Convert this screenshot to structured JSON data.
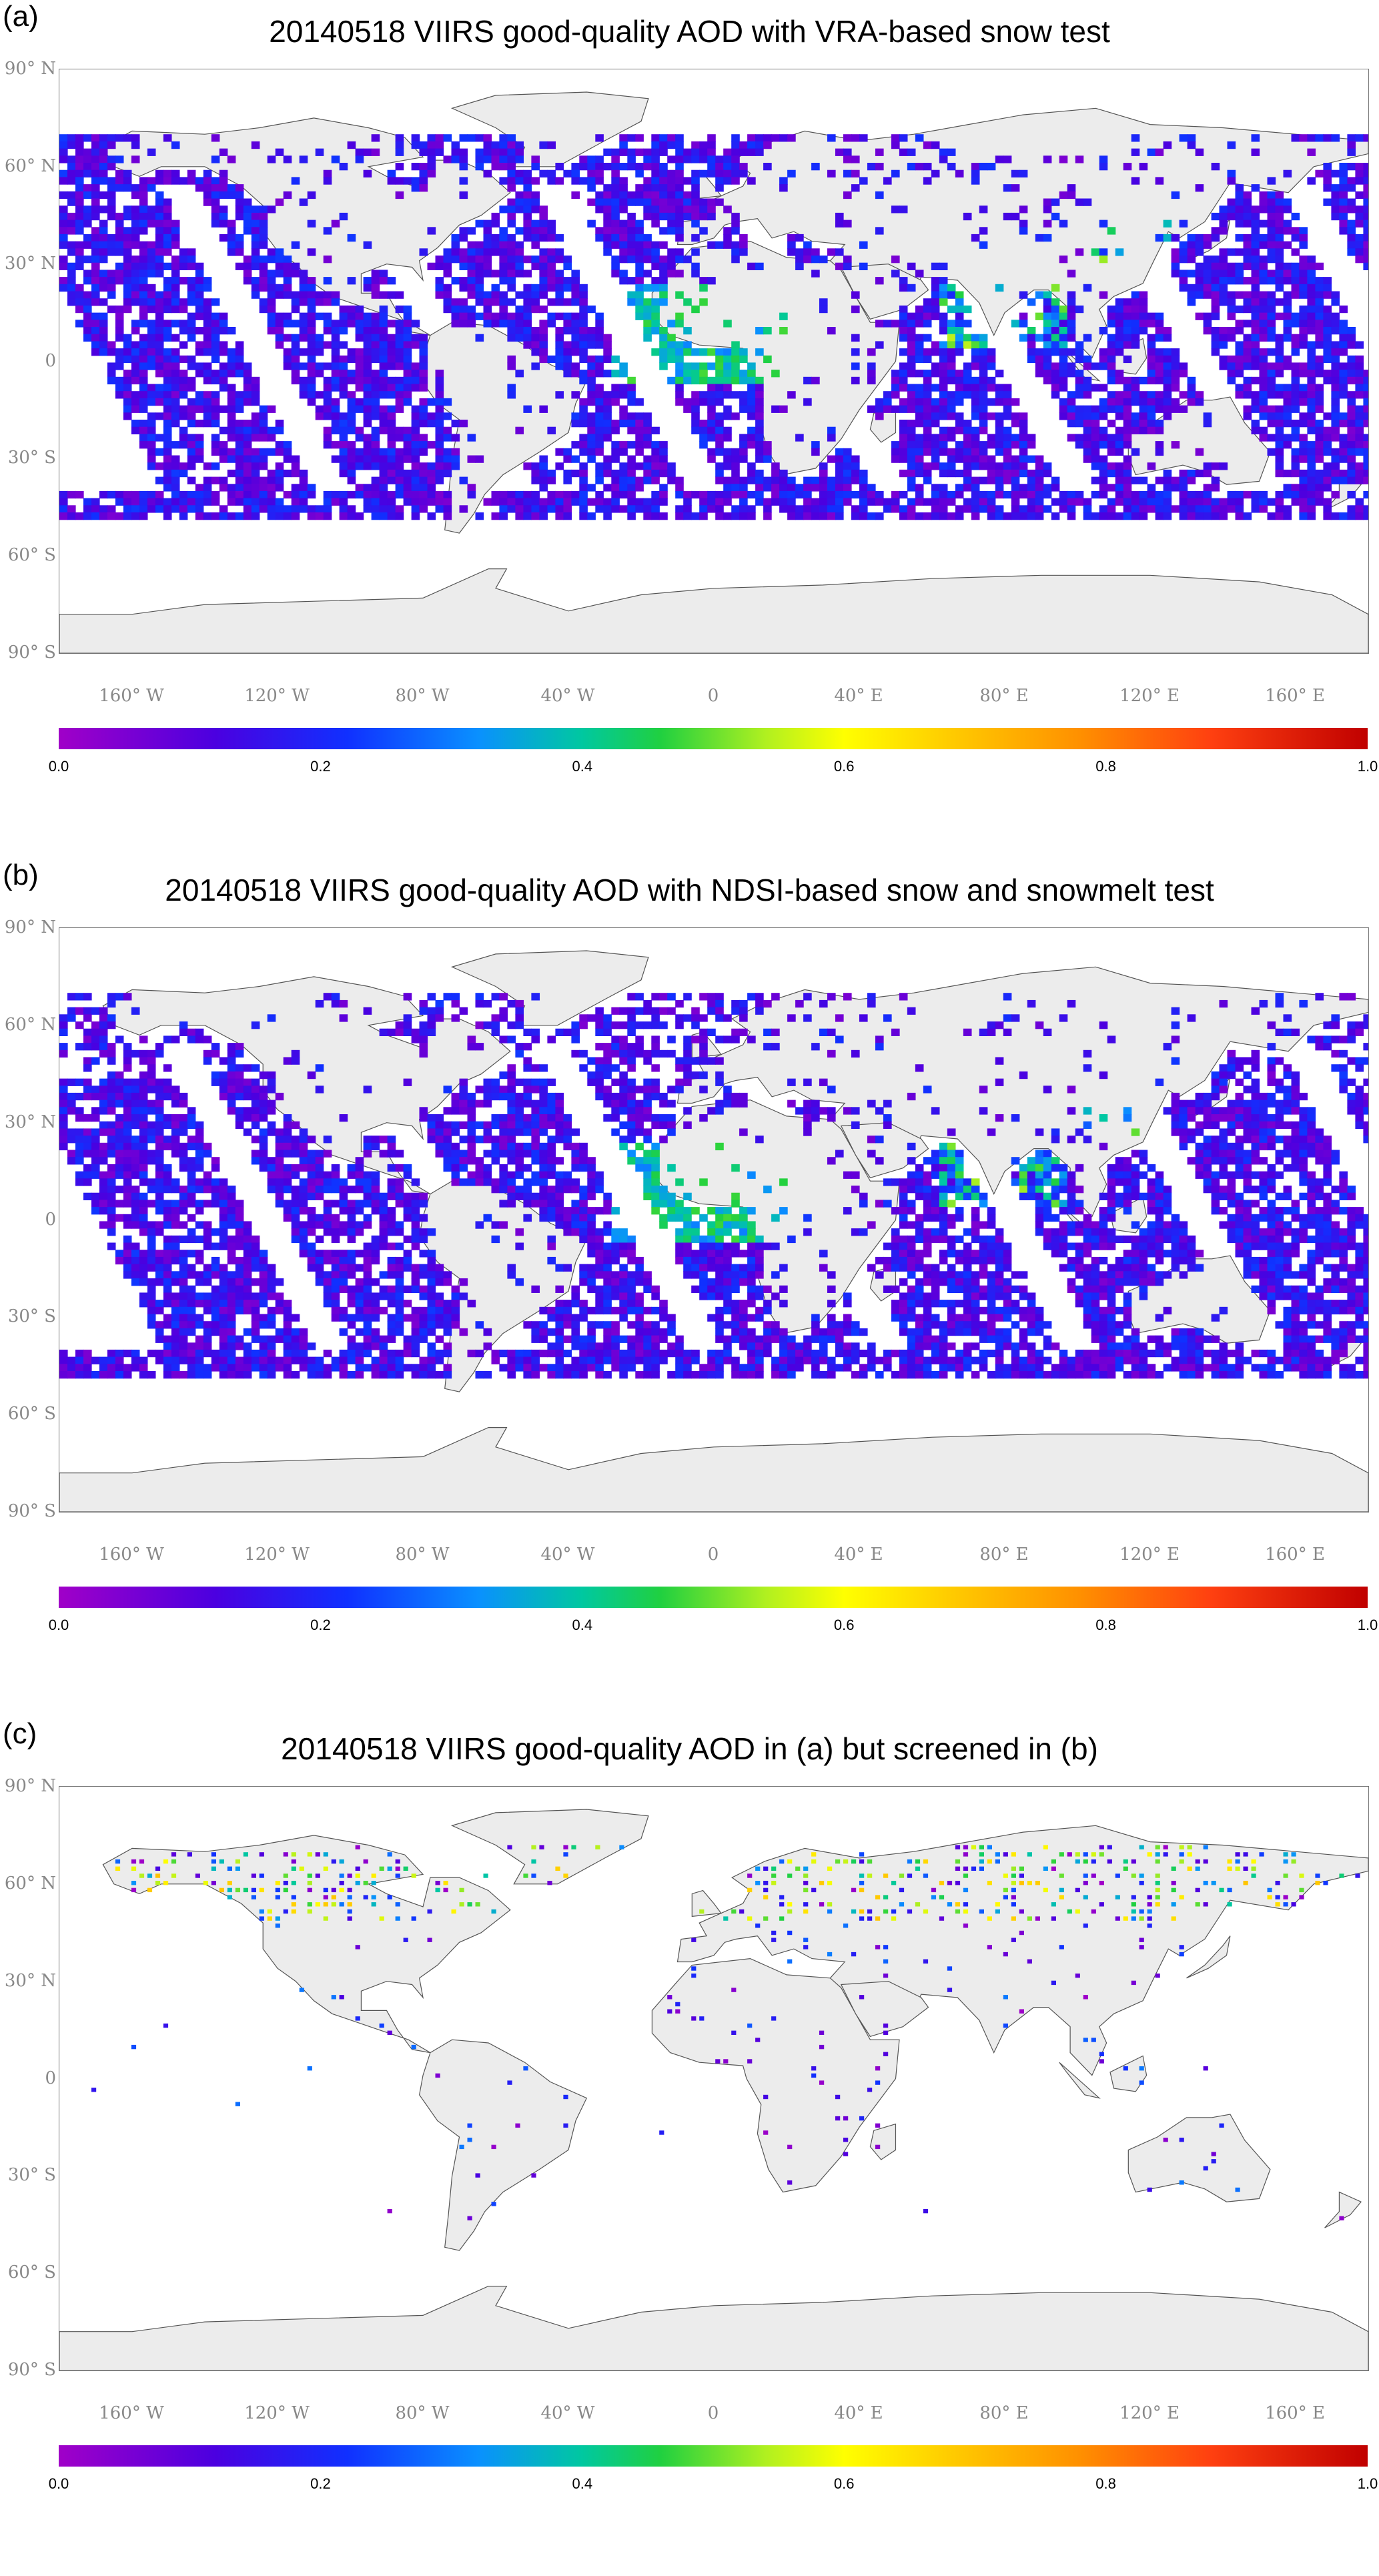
{
  "panels": [
    {
      "letter": "(a)",
      "title": "20140518 VIIRS good-quality AOD with VRA-based snow test",
      "coverage": "full"
    },
    {
      "letter": "(b)",
      "title": "20140518 VIIRS good-quality AOD with NDSI-based snow and snowmelt test",
      "coverage": "full"
    },
    {
      "letter": "(c)",
      "title": "20140518 VIIRS good-quality AOD in (a) but screened in (b)",
      "coverage": "sparse"
    }
  ],
  "lat_labels": [
    {
      "text": "90° N",
      "lat": 90
    },
    {
      "text": "60° N",
      "lat": 60
    },
    {
      "text": "30° N",
      "lat": 30
    },
    {
      "text": "0",
      "lat": 0
    },
    {
      "text": "30° S",
      "lat": -30
    },
    {
      "text": "60° S",
      "lat": -60
    },
    {
      "text": "90° S",
      "lat": -90
    }
  ],
  "lon_labels": [
    {
      "text": "160° W",
      "lon": -160
    },
    {
      "text": "120° W",
      "lon": -120
    },
    {
      "text": "80° W",
      "lon": -80
    },
    {
      "text": "40° W",
      "lon": -40
    },
    {
      "text": "0",
      "lon": 0
    },
    {
      "text": "40° E",
      "lon": 40
    },
    {
      "text": "80° E",
      "lon": 80
    },
    {
      "text": "120° E",
      "lon": 120
    },
    {
      "text": "160° E",
      "lon": 160
    }
  ],
  "colorbar_ticks": [
    {
      "text": "0.0",
      "value": 0.0
    },
    {
      "text": "0.2",
      "value": 0.2
    },
    {
      "text": "0.4",
      "value": 0.4
    },
    {
      "text": "0.6",
      "value": 0.6
    },
    {
      "text": "0.8",
      "value": 0.8
    },
    {
      "text": "1.0",
      "value": 1.0
    }
  ],
  "colors": {
    "land": "#ececec",
    "coast": "#555555",
    "aod_low": "#7a00c8",
    "aod_mid": "#1e3cff",
    "aod_high": "#c00000"
  }
}
